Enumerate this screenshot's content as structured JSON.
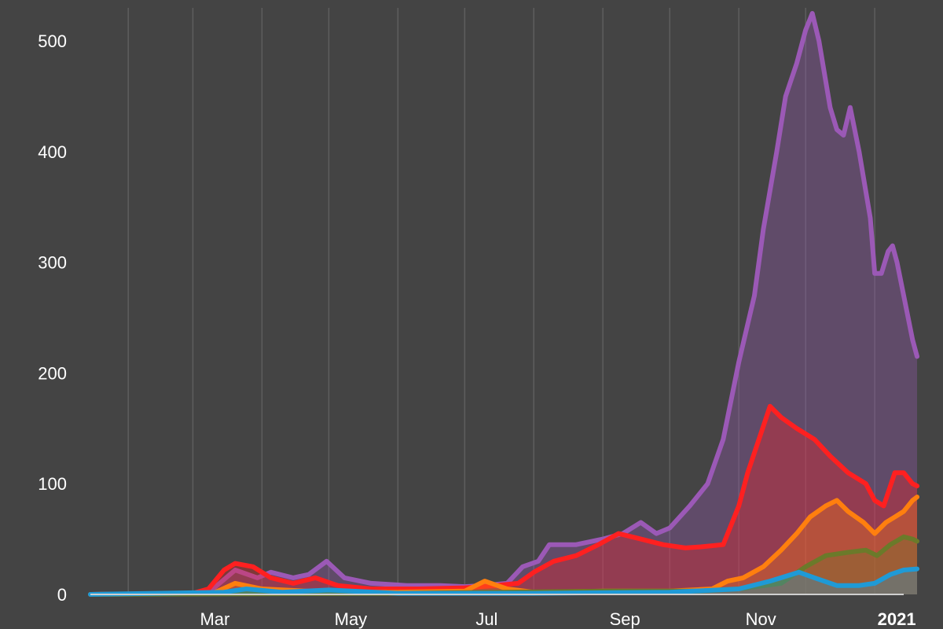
{
  "colors": {
    "background": "#444444",
    "grid": "#5e5e5e",
    "axis": "#cfcfcf"
  },
  "chart_data": {
    "type": "area",
    "title": "",
    "xlabel": "",
    "ylabel": "",
    "ylim": [
      0,
      530
    ],
    "xlim": [
      "2020-01-15",
      "2021-01-14"
    ],
    "grid": true,
    "legend": "none",
    "y_ticks": [
      0,
      100,
      200,
      300,
      400,
      500
    ],
    "y_tick_labels": [
      "0",
      "100",
      "200",
      "300",
      "400",
      "500"
    ],
    "x_ticks": [
      {
        "date": "2020-03-01",
        "label": "Mar",
        "bold": false
      },
      {
        "date": "2020-05-01",
        "label": "May",
        "bold": false
      },
      {
        "date": "2020-07-01",
        "label": "Jul",
        "bold": false
      },
      {
        "date": "2020-09-01",
        "label": "Sep",
        "bold": false
      },
      {
        "date": "2020-11-01",
        "label": "Nov",
        "bold": false
      },
      {
        "date": "2021-01-01",
        "label": "2021",
        "bold": true
      }
    ],
    "x_gridlines": [
      "2020-02-01",
      "2020-03-01",
      "2020-04-01",
      "2020-05-01",
      "2020-06-01",
      "2020-07-01",
      "2020-08-01",
      "2020-09-01",
      "2020-10-01",
      "2020-11-01",
      "2020-12-01",
      "2021-01-01"
    ],
    "series": [
      {
        "color": "#9b59b6",
        "points": [
          [
            "2020-01-15",
            0
          ],
          [
            "2020-03-01",
            1
          ],
          [
            "2020-03-10",
            5
          ],
          [
            "2020-03-20",
            22
          ],
          [
            "2020-03-30",
            15
          ],
          [
            "2020-04-05",
            20
          ],
          [
            "2020-04-15",
            15
          ],
          [
            "2020-04-22",
            18
          ],
          [
            "2020-04-30",
            30
          ],
          [
            "2020-05-08",
            15
          ],
          [
            "2020-05-20",
            10
          ],
          [
            "2020-06-05",
            8
          ],
          [
            "2020-06-20",
            8
          ],
          [
            "2020-07-01",
            7
          ],
          [
            "2020-07-10",
            8
          ],
          [
            "2020-07-20",
            10
          ],
          [
            "2020-07-27",
            25
          ],
          [
            "2020-08-03",
            30
          ],
          [
            "2020-08-08",
            45
          ],
          [
            "2020-08-20",
            45
          ],
          [
            "2020-09-01",
            50
          ],
          [
            "2020-09-10",
            55
          ],
          [
            "2020-09-18",
            65
          ],
          [
            "2020-09-25",
            55
          ],
          [
            "2020-10-01",
            60
          ],
          [
            "2020-10-10",
            80
          ],
          [
            "2020-10-18",
            100
          ],
          [
            "2020-10-25",
            140
          ],
          [
            "2020-11-01",
            210
          ],
          [
            "2020-11-08",
            270
          ],
          [
            "2020-11-12",
            330
          ],
          [
            "2020-11-18",
            400
          ],
          [
            "2020-11-22",
            450
          ],
          [
            "2020-11-27",
            480
          ],
          [
            "2020-12-01",
            510
          ],
          [
            "2020-12-04",
            525
          ],
          [
            "2020-12-07",
            500
          ],
          [
            "2020-12-12",
            440
          ],
          [
            "2020-12-15",
            420
          ],
          [
            "2020-12-18",
            415
          ],
          [
            "2020-12-21",
            440
          ],
          [
            "2020-12-25",
            400
          ],
          [
            "2020-12-30",
            340
          ],
          [
            "2021-01-01",
            290
          ],
          [
            "2021-01-04",
            290
          ],
          [
            "2021-01-07",
            310
          ],
          [
            "2021-01-09",
            315
          ],
          [
            "2021-01-11",
            300
          ],
          [
            "2021-01-14",
            270
          ],
          [
            "2021-01-18",
            230
          ],
          [
            "2021-01-20",
            215
          ]
        ]
      },
      {
        "color": "#ff2020",
        "points": [
          [
            "2020-01-15",
            0
          ],
          [
            "2020-03-01",
            1
          ],
          [
            "2020-03-08",
            5
          ],
          [
            "2020-03-15",
            22
          ],
          [
            "2020-03-20",
            28
          ],
          [
            "2020-03-28",
            25
          ],
          [
            "2020-04-05",
            15
          ],
          [
            "2020-04-15",
            10
          ],
          [
            "2020-04-25",
            15
          ],
          [
            "2020-05-05",
            8
          ],
          [
            "2020-05-20",
            5
          ],
          [
            "2020-06-10",
            5
          ],
          [
            "2020-07-01",
            6
          ],
          [
            "2020-07-15",
            8
          ],
          [
            "2020-07-25",
            10
          ],
          [
            "2020-08-01",
            20
          ],
          [
            "2020-08-10",
            30
          ],
          [
            "2020-08-20",
            35
          ],
          [
            "2020-08-30",
            45
          ],
          [
            "2020-09-08",
            55
          ],
          [
            "2020-09-18",
            50
          ],
          [
            "2020-09-28",
            45
          ],
          [
            "2020-10-08",
            42
          ],
          [
            "2020-10-15",
            43
          ],
          [
            "2020-10-25",
            45
          ],
          [
            "2020-11-01",
            80
          ],
          [
            "2020-11-05",
            110
          ],
          [
            "2020-11-10",
            140
          ],
          [
            "2020-11-15",
            170
          ],
          [
            "2020-11-20",
            160
          ],
          [
            "2020-11-27",
            150
          ],
          [
            "2020-12-05",
            140
          ],
          [
            "2020-12-12",
            125
          ],
          [
            "2020-12-20",
            110
          ],
          [
            "2020-12-28",
            100
          ],
          [
            "2021-01-01",
            85
          ],
          [
            "2021-01-05",
            80
          ],
          [
            "2021-01-10",
            110
          ],
          [
            "2021-01-14",
            110
          ],
          [
            "2021-01-18",
            100
          ],
          [
            "2021-01-20",
            98
          ]
        ]
      },
      {
        "color": "#ff7f0e",
        "points": [
          [
            "2020-01-15",
            0
          ],
          [
            "2020-03-10",
            1
          ],
          [
            "2020-03-20",
            10
          ],
          [
            "2020-04-01",
            5
          ],
          [
            "2020-05-01",
            2
          ],
          [
            "2020-06-01",
            2
          ],
          [
            "2020-07-01",
            3
          ],
          [
            "2020-07-10",
            12
          ],
          [
            "2020-07-20",
            5
          ],
          [
            "2020-08-01",
            2
          ],
          [
            "2020-09-01",
            3
          ],
          [
            "2020-10-01",
            3
          ],
          [
            "2020-10-20",
            5
          ],
          [
            "2020-10-27",
            12
          ],
          [
            "2020-11-03",
            15
          ],
          [
            "2020-11-12",
            25
          ],
          [
            "2020-11-20",
            40
          ],
          [
            "2020-11-27",
            55
          ],
          [
            "2020-12-03",
            70
          ],
          [
            "2020-12-10",
            80
          ],
          [
            "2020-12-15",
            85
          ],
          [
            "2020-12-20",
            75
          ],
          [
            "2020-12-27",
            65
          ],
          [
            "2021-01-01",
            55
          ],
          [
            "2021-01-06",
            65
          ],
          [
            "2021-01-10",
            70
          ],
          [
            "2021-01-14",
            75
          ],
          [
            "2021-01-18",
            85
          ],
          [
            "2021-01-20",
            88
          ]
        ]
      },
      {
        "color": "#6b7a2a",
        "points": [
          [
            "2020-01-15",
            0
          ],
          [
            "2020-06-01",
            1
          ],
          [
            "2020-09-01",
            3
          ],
          [
            "2020-10-15",
            3
          ],
          [
            "2020-11-01",
            5
          ],
          [
            "2020-11-20",
            10
          ],
          [
            "2020-12-01",
            25
          ],
          [
            "2020-12-10",
            35
          ],
          [
            "2020-12-20",
            38
          ],
          [
            "2020-12-28",
            40
          ],
          [
            "2021-01-02",
            35
          ],
          [
            "2021-01-08",
            45
          ],
          [
            "2021-01-14",
            52
          ],
          [
            "2021-01-18",
            50
          ],
          [
            "2021-01-20",
            48
          ]
        ]
      },
      {
        "color": "#1f9ad6",
        "points": [
          [
            "2020-01-15",
            0
          ],
          [
            "2020-03-15",
            2
          ],
          [
            "2020-03-25",
            5
          ],
          [
            "2020-04-10",
            2
          ],
          [
            "2020-05-01",
            4
          ],
          [
            "2020-06-01",
            1
          ],
          [
            "2020-08-01",
            1
          ],
          [
            "2020-10-01",
            2
          ],
          [
            "2020-11-01",
            5
          ],
          [
            "2020-11-15",
            12
          ],
          [
            "2020-11-28",
            20
          ],
          [
            "2020-12-05",
            15
          ],
          [
            "2020-12-15",
            8
          ],
          [
            "2020-12-25",
            8
          ],
          [
            "2021-01-01",
            10
          ],
          [
            "2021-01-08",
            18
          ],
          [
            "2021-01-14",
            22
          ],
          [
            "2021-01-20",
            23
          ]
        ]
      }
    ]
  }
}
